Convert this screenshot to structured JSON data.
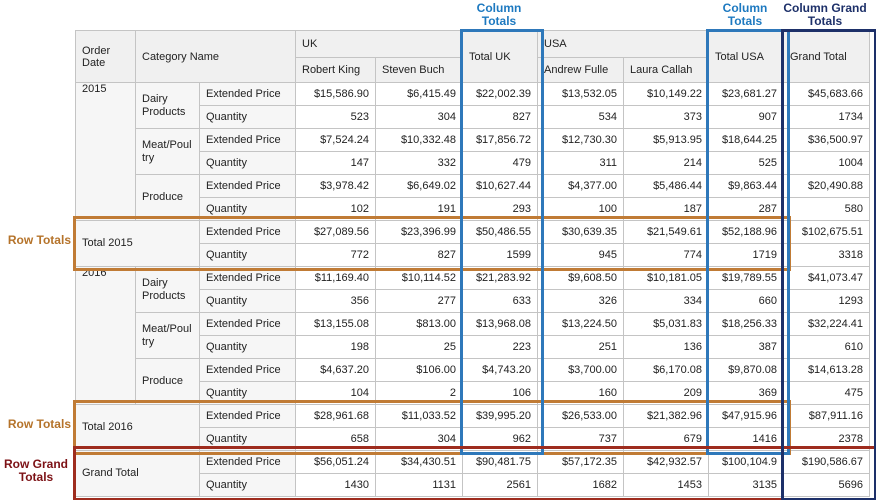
{
  "annotations": {
    "column_totals_uk": "Column Totals",
    "column_totals_usa": "Column Totals",
    "column_grand_totals": "Column Grand Totals",
    "row_totals_2015": "Row Totals",
    "row_totals_2016": "Row Totals",
    "row_grand_totals": "Row Grand Totals"
  },
  "colors": {
    "column_totals_accent": "#2e78ba",
    "column_grand_totals_accent": "#1d3069",
    "row_totals_accent": "#c07b35",
    "row_grand_totals_accent": "#9e2c1e",
    "grid_border": "#c4c4c4",
    "header_background": "#f0f0f0"
  },
  "pivot": {
    "headers": {
      "order_date": "Order Date",
      "category_name": "Category Name",
      "grand_total": "Grand Total"
    },
    "col_groups": [
      {
        "label": "UK",
        "cols": [
          "Robert King",
          "Steven Buch"
        ],
        "total_label": "Total UK"
      },
      {
        "label": "USA",
        "cols": [
          "Andrew Fulle",
          "Laura Callah"
        ],
        "total_label": "Total USA"
      }
    ],
    "measure_labels": [
      "Extended Price",
      "Quantity"
    ],
    "row_groups": [
      {
        "year": "2015",
        "categories": [
          {
            "name": "Dairy Products",
            "extended_price": [
              "$15,586.90",
              "$6,415.49",
              "$22,002.39",
              "$13,532.05",
              "$10,149.22",
              "$23,681.27",
              "$45,683.66"
            ],
            "quantity": [
              "523",
              "304",
              "827",
              "534",
              "373",
              "907",
              "1734"
            ]
          },
          {
            "name": "Meat/Poultry",
            "extended_price": [
              "$7,524.24",
              "$10,332.48",
              "$17,856.72",
              "$12,730.30",
              "$5,913.95",
              "$18,644.25",
              "$36,500.97"
            ],
            "quantity": [
              "147",
              "332",
              "479",
              "311",
              "214",
              "525",
              "1004"
            ]
          },
          {
            "name": "Produce",
            "extended_price": [
              "$3,978.42",
              "$6,649.02",
              "$10,627.44",
              "$4,377.00",
              "$5,486.44",
              "$9,863.44",
              "$20,490.88"
            ],
            "quantity": [
              "102",
              "191",
              "293",
              "100",
              "187",
              "287",
              "580"
            ]
          }
        ],
        "total": {
          "label": "Total 2015",
          "extended_price": [
            "$27,089.56",
            "$23,396.99",
            "$50,486.55",
            "$30,639.35",
            "$21,549.61",
            "$52,188.96",
            "$102,675.51"
          ],
          "quantity": [
            "772",
            "827",
            "1599",
            "945",
            "774",
            "1719",
            "3318"
          ]
        }
      },
      {
        "year": "2016",
        "categories": [
          {
            "name": "Dairy Products",
            "extended_price": [
              "$11,169.40",
              "$10,114.52",
              "$21,283.92",
              "$9,608.50",
              "$10,181.05",
              "$19,789.55",
              "$41,073.47"
            ],
            "quantity": [
              "356",
              "277",
              "633",
              "326",
              "334",
              "660",
              "1293"
            ]
          },
          {
            "name": "Meat/Poultry",
            "extended_price": [
              "$13,155.08",
              "$813.00",
              "$13,968.08",
              "$13,224.50",
              "$5,031.83",
              "$18,256.33",
              "$32,224.41"
            ],
            "quantity": [
              "198",
              "25",
              "223",
              "251",
              "136",
              "387",
              "610"
            ]
          },
          {
            "name": "Produce",
            "extended_price": [
              "$4,637.20",
              "$106.00",
              "$4,743.20",
              "$3,700.00",
              "$6,170.08",
              "$9,870.08",
              "$14,613.28"
            ],
            "quantity": [
              "104",
              "2",
              "106",
              "160",
              "209",
              "369",
              "475"
            ]
          }
        ],
        "total": {
          "label": "Total 2016",
          "extended_price": [
            "$28,961.68",
            "$11,033.52",
            "$39,995.20",
            "$26,533.00",
            "$21,382.96",
            "$47,915.96",
            "$87,911.16"
          ],
          "quantity": [
            "658",
            "304",
            "962",
            "737",
            "679",
            "1416",
            "2378"
          ]
        }
      }
    ],
    "grand_total": {
      "label": "Grand Total",
      "extended_price": [
        "$56,051.24",
        "$34,430.51",
        "$90,481.75",
        "$57,172.35",
        "$42,932.57",
        "$100,104.9",
        "$190,586.67"
      ],
      "quantity": [
        "1430",
        "1131",
        "2561",
        "1682",
        "1453",
        "3135",
        "5696"
      ]
    }
  }
}
